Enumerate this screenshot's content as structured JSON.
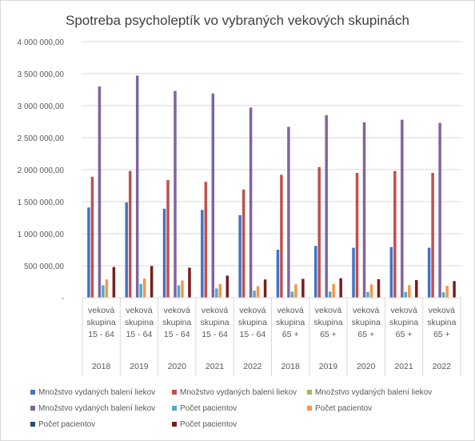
{
  "chart_data": {
    "type": "bar",
    "title": "Spotreba psycholeptík vo vybraných vekových skupinách",
    "ylim": [
      0,
      4000000
    ],
    "yticks": [
      "-",
      "500 000,00",
      "1 000 000,00",
      "1 500 000,00",
      "2 000 000,00",
      "2 500 000,00",
      "3 000 000,00",
      "3 500 000,00",
      "4 000 000,00"
    ],
    "grid": true,
    "legend_position": "bottom",
    "categories": [
      {
        "group": [
          "veková",
          "skupina",
          "15 - 64"
        ],
        "year": "2018"
      },
      {
        "group": [
          "veková",
          "skupina",
          "15 - 64"
        ],
        "year": "2019"
      },
      {
        "group": [
          "veková",
          "skupina",
          "15 - 64"
        ],
        "year": "2020"
      },
      {
        "group": [
          "veková",
          "skupina",
          "15 - 64"
        ],
        "year": "2021"
      },
      {
        "group": [
          "veková",
          "skupina",
          "15 - 64"
        ],
        "year": "2022"
      },
      {
        "group": [
          "veková",
          "skupina",
          "65 +"
        ],
        "year": "2018"
      },
      {
        "group": [
          "veková",
          "skupina",
          "65 +"
        ],
        "year": "2019"
      },
      {
        "group": [
          "veková",
          "skupina",
          "65 +"
        ],
        "year": "2020"
      },
      {
        "group": [
          "veková",
          "skupina",
          "65 +"
        ],
        "year": "2021"
      },
      {
        "group": [
          "veková",
          "skupina",
          "65 +"
        ],
        "year": "2022"
      }
    ],
    "series": [
      {
        "name": "Množstvo vydaných  balení liekov",
        "color": "#4472c4",
        "values": [
          1410000,
          1490000,
          1390000,
          1370000,
          1290000,
          750000,
          810000,
          780000,
          790000,
          780000
        ]
      },
      {
        "name": "Množstvo vydaných  balení liekov",
        "color": "#c0504d",
        "values": [
          1890000,
          1980000,
          1840000,
          1810000,
          1690000,
          1920000,
          2040000,
          1950000,
          1980000,
          1950000
        ]
      },
      {
        "name": "Množstvo vydaných  balení liekov",
        "color": "#9bbb59",
        "values": [
          0,
          0,
          0,
          0,
          0,
          0,
          0,
          0,
          0,
          0
        ]
      },
      {
        "name": "Množstvo vydaných  balení liekov",
        "color": "#8064a2",
        "values": [
          3300000,
          3470000,
          3230000,
          3190000,
          2970000,
          2670000,
          2850000,
          2740000,
          2780000,
          2730000
        ]
      },
      {
        "name": "Počet pacientov",
        "color": "#4bacc6",
        "values": [
          195000,
          215000,
          195000,
          145000,
          110000,
          95000,
          95000,
          90000,
          90000,
          85000
        ]
      },
      {
        "name": "Počet pacientov",
        "color": "#f79646",
        "values": [
          285000,
          300000,
          270000,
          215000,
          180000,
          210000,
          215000,
          210000,
          195000,
          185000
        ]
      },
      {
        "name": "Počet pacientov",
        "color": "#1f4e79",
        "values": [
          0,
          0,
          0,
          0,
          0,
          0,
          0,
          0,
          0,
          0
        ]
      },
      {
        "name": "Počet pacientov",
        "color": "#7b1c1c",
        "values": [
          480000,
          495000,
          470000,
          345000,
          285000,
          295000,
          305000,
          290000,
          275000,
          260000
        ]
      }
    ]
  }
}
